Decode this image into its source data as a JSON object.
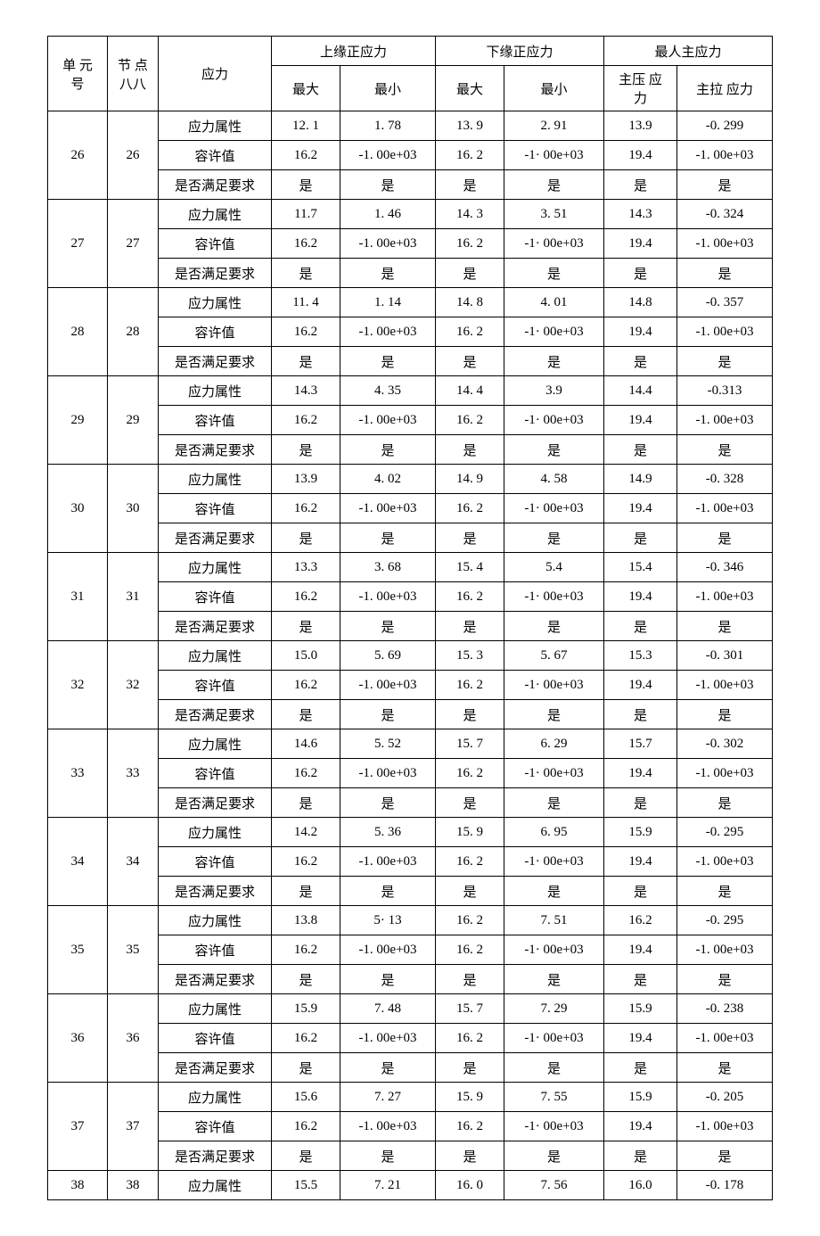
{
  "headers": {
    "h1": "单 元 号",
    "h2": "节 点 八八",
    "h3": "应力",
    "g1": "上缘正应力",
    "g1a": "最大",
    "g1b": "最小",
    "g2": "下缘正应力",
    "g2a": "最大",
    "g2b": "最小",
    "g3": "最人主应力",
    "g3a": "主压 应 力",
    "g3b": "主拉 应力"
  },
  "rowLabels": {
    "a": "应力属性",
    "b": "容许值",
    "c": "是否满足要求"
  },
  "groups": [
    {
      "id": "26",
      "node": "26",
      "a": [
        "12. 1",
        "1. 78",
        "13. 9",
        "2. 91",
        "13.9",
        "-0. 299"
      ],
      "b": [
        "16.2",
        "-1. 00e+03",
        "16. 2",
        "-1· 00e+03",
        "19.4",
        "-1. 00e+03"
      ],
      "c": [
        "是",
        "是",
        "是",
        "是",
        "是",
        "是"
      ]
    },
    {
      "id": "27",
      "node": "27",
      "a": [
        "11.7",
        "1. 46",
        "14. 3",
        "3. 51",
        "14.3",
        "-0. 324"
      ],
      "b": [
        "16.2",
        "-1. 00e+03",
        "16. 2",
        "-1· 00e+03",
        "19.4",
        "-1. 00e+03"
      ],
      "c": [
        "是",
        "是",
        "是",
        "是",
        "是",
        "是"
      ]
    },
    {
      "id": "28",
      "node": "28",
      "a": [
        "11. 4",
        "1. 14",
        "14. 8",
        "4. 01",
        "14.8",
        "-0. 357"
      ],
      "b": [
        "16.2",
        "-1. 00e+03",
        "16. 2",
        "-1· 00e+03",
        "19.4",
        "-1. 00e+03"
      ],
      "c": [
        "是",
        "是",
        "是",
        "是",
        "是",
        "是"
      ]
    },
    {
      "id": "29",
      "node": "29",
      "a": [
        "14.3",
        "4. 35",
        "14. 4",
        "3.9",
        "14.4",
        "-0.313"
      ],
      "b": [
        "16.2",
        "-1. 00e+03",
        "16. 2",
        "-1· 00e+03",
        "19.4",
        "-1. 00e+03"
      ],
      "c": [
        "是",
        "是",
        "是",
        "是",
        "是",
        "是"
      ]
    },
    {
      "id": "30",
      "node": "30",
      "a": [
        "13.9",
        "4. 02",
        "14. 9",
        "4. 58",
        "14.9",
        "-0. 328"
      ],
      "b": [
        "16.2",
        "-1. 00e+03",
        "16. 2",
        "-1· 00e+03",
        "19.4",
        "-1. 00e+03"
      ],
      "c": [
        "是",
        "是",
        "是",
        "是",
        "是",
        "是"
      ]
    },
    {
      "id": "31",
      "node": "31",
      "a": [
        "13.3",
        "3. 68",
        "15. 4",
        "5.4",
        "15.4",
        "-0. 346"
      ],
      "b": [
        "16.2",
        "-1. 00e+03",
        "16. 2",
        "-1· 00e+03",
        "19.4",
        "-1. 00e+03"
      ],
      "c": [
        "是",
        "是",
        "是",
        "是",
        "是",
        "是"
      ]
    },
    {
      "id": "32",
      "node": "32",
      "a": [
        "15.0",
        "5. 69",
        "15. 3",
        "5. 67",
        "15.3",
        "-0. 301"
      ],
      "b": [
        "16.2",
        "-1. 00e+03",
        "16. 2",
        "-1· 00e+03",
        "19.4",
        "-1. 00e+03"
      ],
      "c": [
        "是",
        "是",
        "是",
        "是",
        "是",
        "是"
      ]
    },
    {
      "id": "33",
      "node": "33",
      "a": [
        "14.6",
        "5. 52",
        "15. 7",
        "6. 29",
        "15.7",
        "-0. 302"
      ],
      "b": [
        "16.2",
        "-1. 00e+03",
        "16. 2",
        "-1· 00e+03",
        "19.4",
        "-1. 00e+03"
      ],
      "c": [
        "是",
        "是",
        "是",
        "是",
        "是",
        "是"
      ]
    },
    {
      "id": "34",
      "node": "34",
      "a": [
        "14.2",
        "5. 36",
        "15. 9",
        "6. 95",
        "15.9",
        "-0. 295"
      ],
      "b": [
        "16.2",
        "-1. 00e+03",
        "16. 2",
        "-1· 00e+03",
        "19.4",
        "-1. 00e+03"
      ],
      "c": [
        "是",
        "是",
        "是",
        "是",
        "是",
        "是"
      ]
    },
    {
      "id": "35",
      "node": "35",
      "a": [
        "13.8",
        "5· 13",
        "16. 2",
        "7. 51",
        "16.2",
        "-0. 295"
      ],
      "b": [
        "16.2",
        "-1. 00e+03",
        "16. 2",
        "-1· 00e+03",
        "19.4",
        "-1. 00e+03"
      ],
      "c": [
        "是",
        "是",
        "是",
        "是",
        "是",
        "是"
      ]
    },
    {
      "id": "36",
      "node": "36",
      "a": [
        "15.9",
        "7. 48",
        "15. 7",
        "7. 29",
        "15.9",
        "-0. 238"
      ],
      "b": [
        "16.2",
        "-1. 00e+03",
        "16. 2",
        "-1· 00e+03",
        "19.4",
        "-1. 00e+03"
      ],
      "c": [
        "是",
        "是",
        "是",
        "是",
        "是",
        "是"
      ]
    },
    {
      "id": "37",
      "node": "37",
      "a": [
        "15.6",
        "7. 27",
        "15. 9",
        "7. 55",
        "15.9",
        "-0. 205"
      ],
      "b": [
        "16.2",
        "-1. 00e+03",
        "16. 2",
        "-1· 00e+03",
        "19.4",
        "-1. 00e+03"
      ],
      "c": [
        "是",
        "是",
        "是",
        "是",
        "是",
        "是"
      ]
    }
  ],
  "lastRow": {
    "id": "38",
    "node": "38",
    "label": "应力属性",
    "vals": [
      "15.5",
      "7. 21",
      "16. 0",
      "7. 56",
      "16.0",
      "-0. 178"
    ]
  }
}
